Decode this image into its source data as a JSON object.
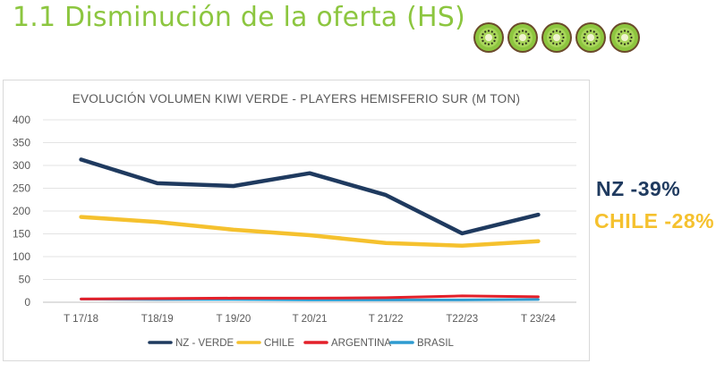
{
  "page": {
    "title": "1.1 Disminución de la oferta (HS)",
    "title_color": "#8cc63f",
    "decoration_icons": [
      "kiwi-slice-icon",
      "kiwi-slice-icon",
      "kiwi-slice-icon",
      "kiwi-slice-icon",
      "kiwi-slice-icon"
    ]
  },
  "callouts": {
    "nz": "NZ -39%",
    "nz_color": "#1f3a5f",
    "chile": "CHILE -28%",
    "chile_color": "#f5c12e"
  },
  "chart_data": {
    "type": "line",
    "title": "EVOLUCIÓN VOLUMEN KIWI VERDE - PLAYERS HEMISFERIO SUR (M TON)",
    "xlabel": "",
    "ylabel": "",
    "categories": [
      "T 17/18",
      "T18/19",
      "T 19/20",
      "T 20/21",
      "T 21/22",
      "T22/23",
      "T 23/24"
    ],
    "ylim": [
      0,
      400
    ],
    "yticks": [
      0,
      50,
      100,
      150,
      200,
      250,
      300,
      350,
      400
    ],
    "grid": true,
    "legend_position": "bottom",
    "series": [
      {
        "name": "NZ - VERDE",
        "color": "#1f3a5f",
        "values": [
          313,
          261,
          255,
          283,
          235,
          151,
          192
        ]
      },
      {
        "name": "CHILE",
        "color": "#f5c12e",
        "values": [
          187,
          176,
          159,
          147,
          130,
          124,
          134
        ]
      },
      {
        "name": "ARGENTINA",
        "color": "#e3202a",
        "values": [
          7,
          8,
          9,
          9,
          10,
          14,
          12
        ]
      },
      {
        "name": "BRASIL",
        "color": "#2e9bd0",
        "values": [
          7,
          6,
          6,
          5,
          5,
          5,
          6
        ]
      }
    ]
  }
}
